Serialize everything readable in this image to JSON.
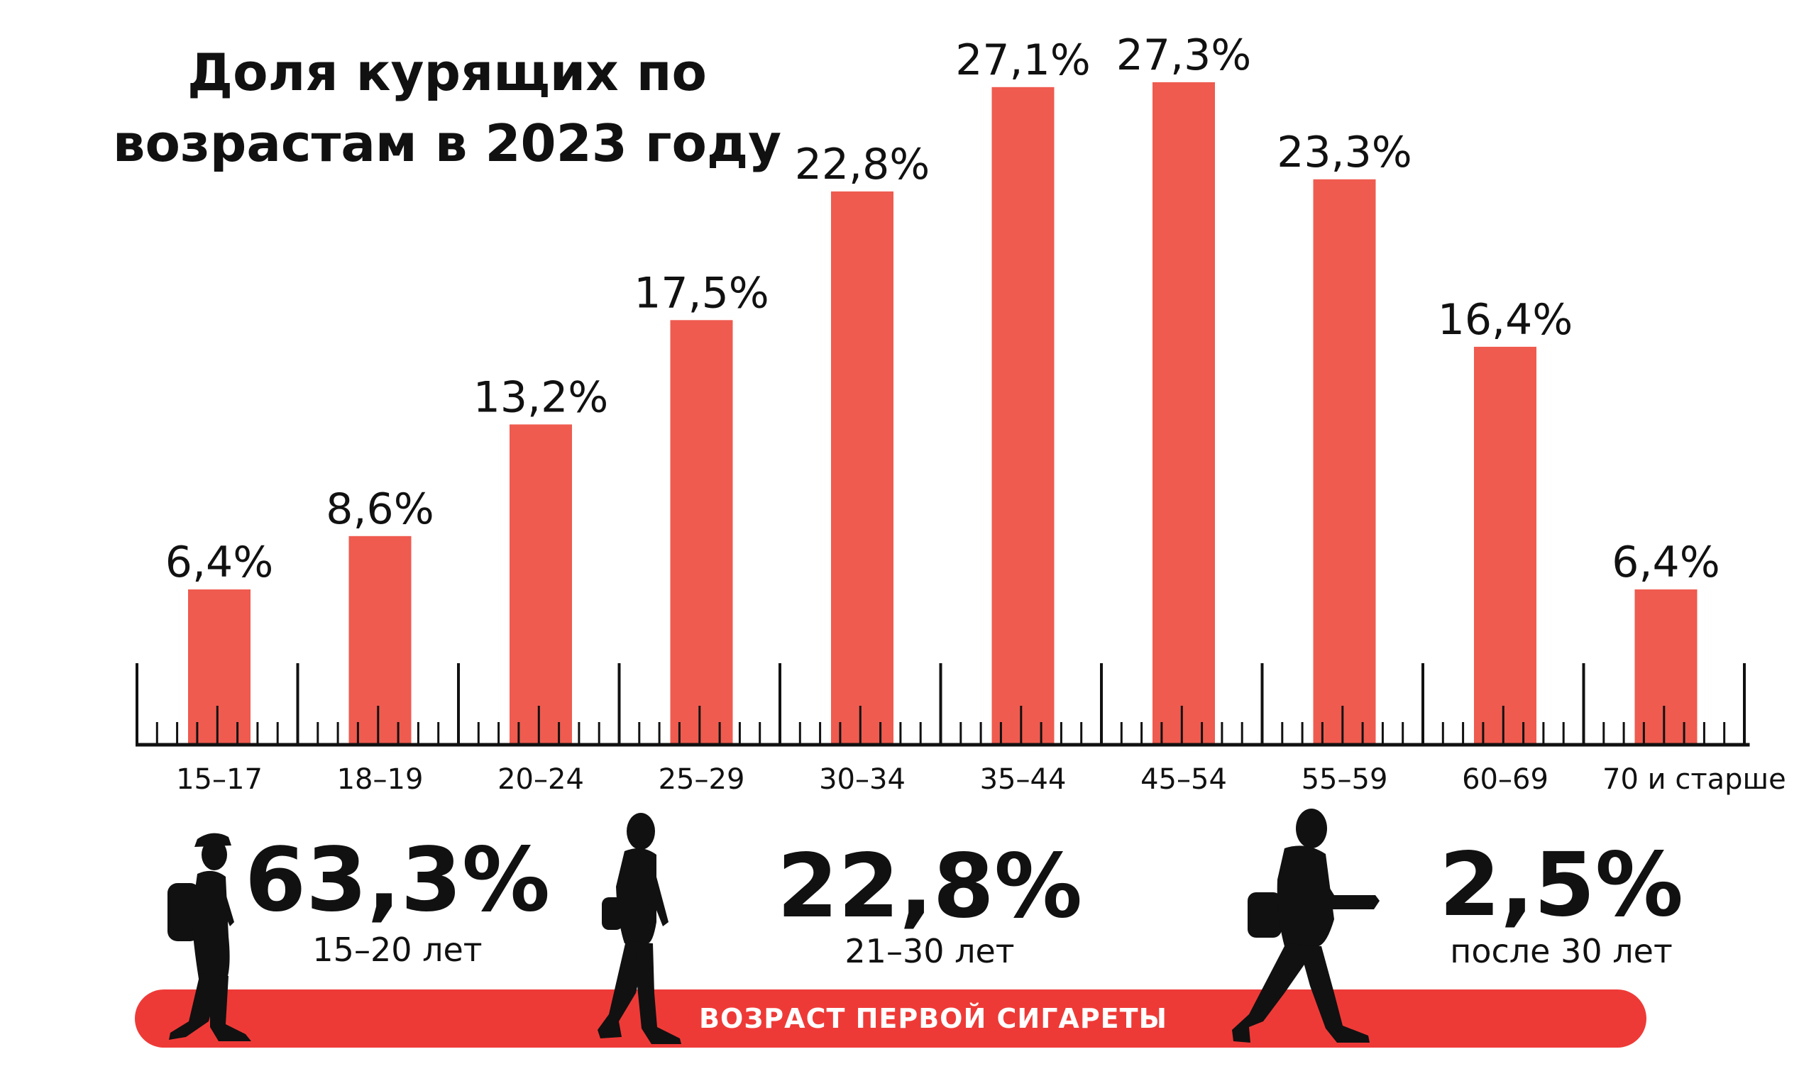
{
  "title": {
    "line1": "Доля курящих по",
    "line2": "возрастам в 2023 году"
  },
  "chart_data": {
    "type": "bar",
    "title": "Доля курящих по возрастам в 2023 году",
    "categories": [
      "15–17",
      "18–19",
      "20–24",
      "25–29",
      "30–34",
      "35–44",
      "45–54",
      "55–59",
      "60–69",
      "70 и старше"
    ],
    "values": [
      6.4,
      8.6,
      13.2,
      17.5,
      22.8,
      27.1,
      27.3,
      23.3,
      16.4,
      6.4
    ],
    "value_labels": [
      "6,4%",
      "8,6%",
      "13,2%",
      "17,5%",
      "22,8%",
      "27,1%",
      "27,3%",
      "23,3%",
      "16,4%",
      "6,4%"
    ],
    "unit": "%",
    "ylim": [
      0,
      28
    ],
    "grid": false,
    "xlabel": "",
    "ylabel": "",
    "bar_color": "#ef5b4f"
  },
  "first_cigarette": {
    "banner_label": "ВОЗРАСТ ПЕРВОЙ СИГАРЕТЫ",
    "banner_color": "#ee3a37",
    "stats": [
      {
        "value": "63,3%",
        "caption": "15–20 лет"
      },
      {
        "value": "22,8%",
        "caption": "21–30 лет"
      },
      {
        "value": "2,5%",
        "caption": "после 30 лет"
      }
    ],
    "figures": [
      "teen-walker-icon",
      "young-walker-icon",
      "adult-walker-icon"
    ]
  }
}
